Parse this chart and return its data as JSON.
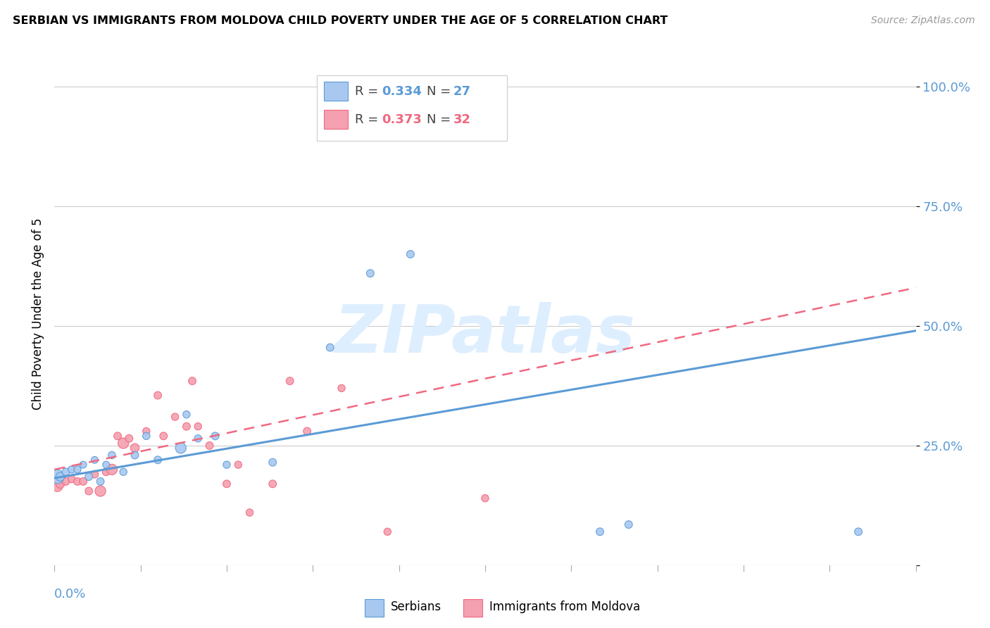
{
  "title": "SERBIAN VS IMMIGRANTS FROM MOLDOVA CHILD POVERTY UNDER THE AGE OF 5 CORRELATION CHART",
  "source": "Source: ZipAtlas.com",
  "ylabel": "Child Poverty Under the Age of 5",
  "xlim": [
    0.0,
    0.15
  ],
  "ylim": [
    0.0,
    1.05
  ],
  "yticks": [
    0.0,
    0.25,
    0.5,
    0.75,
    1.0
  ],
  "ytick_labels": [
    "",
    "25.0%",
    "50.0%",
    "75.0%",
    "100.0%"
  ],
  "serbian_color": "#a8c8f0",
  "moldova_color": "#f4a0b0",
  "trend_serbian_color": "#5b9bd5",
  "trend_moldova_color": "#f06880",
  "watermark": "ZIPatlas",
  "serbian_x": [
    0.0005,
    0.001,
    0.002,
    0.003,
    0.004,
    0.005,
    0.006,
    0.007,
    0.008,
    0.009,
    0.01,
    0.012,
    0.014,
    0.016,
    0.018,
    0.022,
    0.023,
    0.025,
    0.028,
    0.03,
    0.038,
    0.048,
    0.055,
    0.062,
    0.095,
    0.1,
    0.14
  ],
  "serbian_y": [
    0.185,
    0.185,
    0.195,
    0.2,
    0.2,
    0.21,
    0.185,
    0.22,
    0.175,
    0.21,
    0.23,
    0.195,
    0.23,
    0.27,
    0.22,
    0.245,
    0.315,
    0.265,
    0.27,
    0.21,
    0.215,
    0.455,
    0.61,
    0.65,
    0.07,
    0.085,
    0.07
  ],
  "serbian_sizes": [
    200,
    80,
    60,
    55,
    55,
    50,
    60,
    50,
    60,
    50,
    55,
    55,
    60,
    55,
    60,
    120,
    55,
    55,
    60,
    55,
    60,
    60,
    60,
    60,
    60,
    60,
    60
  ],
  "moldova_x": [
    0.0005,
    0.001,
    0.002,
    0.003,
    0.004,
    0.005,
    0.006,
    0.007,
    0.008,
    0.009,
    0.01,
    0.011,
    0.012,
    0.013,
    0.014,
    0.016,
    0.018,
    0.019,
    0.021,
    0.023,
    0.024,
    0.025,
    0.027,
    0.03,
    0.032,
    0.034,
    0.038,
    0.041,
    0.044,
    0.05,
    0.058,
    0.075
  ],
  "moldova_y": [
    0.165,
    0.17,
    0.175,
    0.18,
    0.175,
    0.175,
    0.155,
    0.19,
    0.155,
    0.195,
    0.2,
    0.27,
    0.255,
    0.265,
    0.245,
    0.28,
    0.355,
    0.27,
    0.31,
    0.29,
    0.385,
    0.29,
    0.25,
    0.17,
    0.21,
    0.11,
    0.17,
    0.385,
    0.28,
    0.37,
    0.07,
    0.14
  ],
  "moldova_sizes": [
    120,
    80,
    60,
    55,
    60,
    60,
    60,
    60,
    120,
    60,
    120,
    60,
    120,
    60,
    80,
    55,
    60,
    60,
    55,
    60,
    60,
    55,
    60,
    60,
    55,
    55,
    60,
    60,
    60,
    55,
    55,
    55
  ],
  "serbian_trend": [
    0.182,
    0.49
  ],
  "moldova_trend": [
    0.2,
    0.58
  ]
}
